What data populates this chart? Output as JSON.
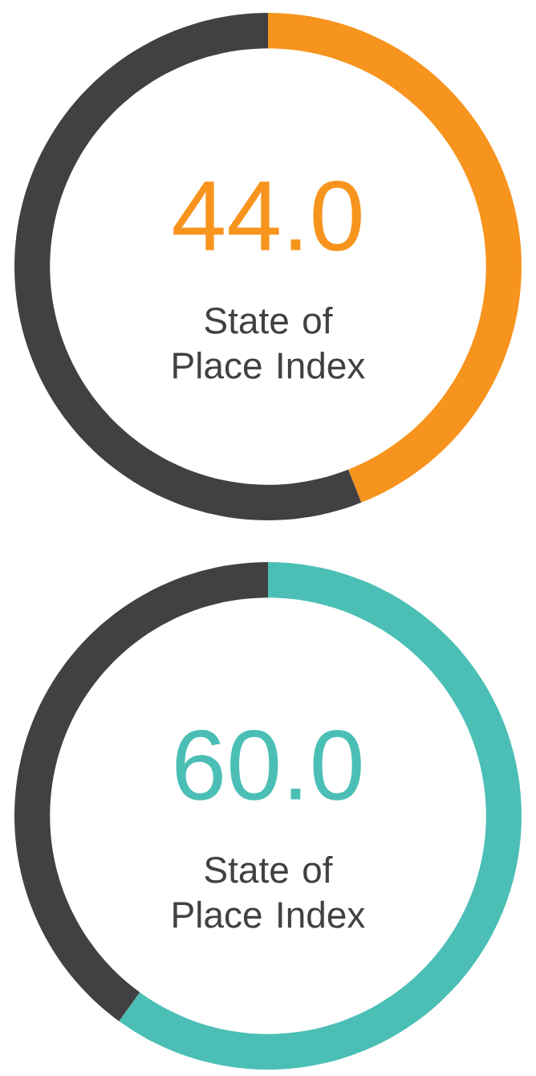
{
  "chart_data": [
    {
      "type": "donut",
      "title": "State of Place Index",
      "categories": [
        null,
        null
      ],
      "values": [
        44.0,
        56.0
      ],
      "colors": [
        "#f7941d",
        "#414042"
      ],
      "value_labels": [
        "44.0",
        null
      ]
    },
    {
      "type": "donut",
      "title": "State of Place Index",
      "categories": [
        null,
        null
      ],
      "values": [
        60.0,
        40.0
      ],
      "colors": [
        "#4bbfb5",
        "#414042"
      ],
      "value_labels": [
        "60.0",
        null
      ]
    }
  ]
}
